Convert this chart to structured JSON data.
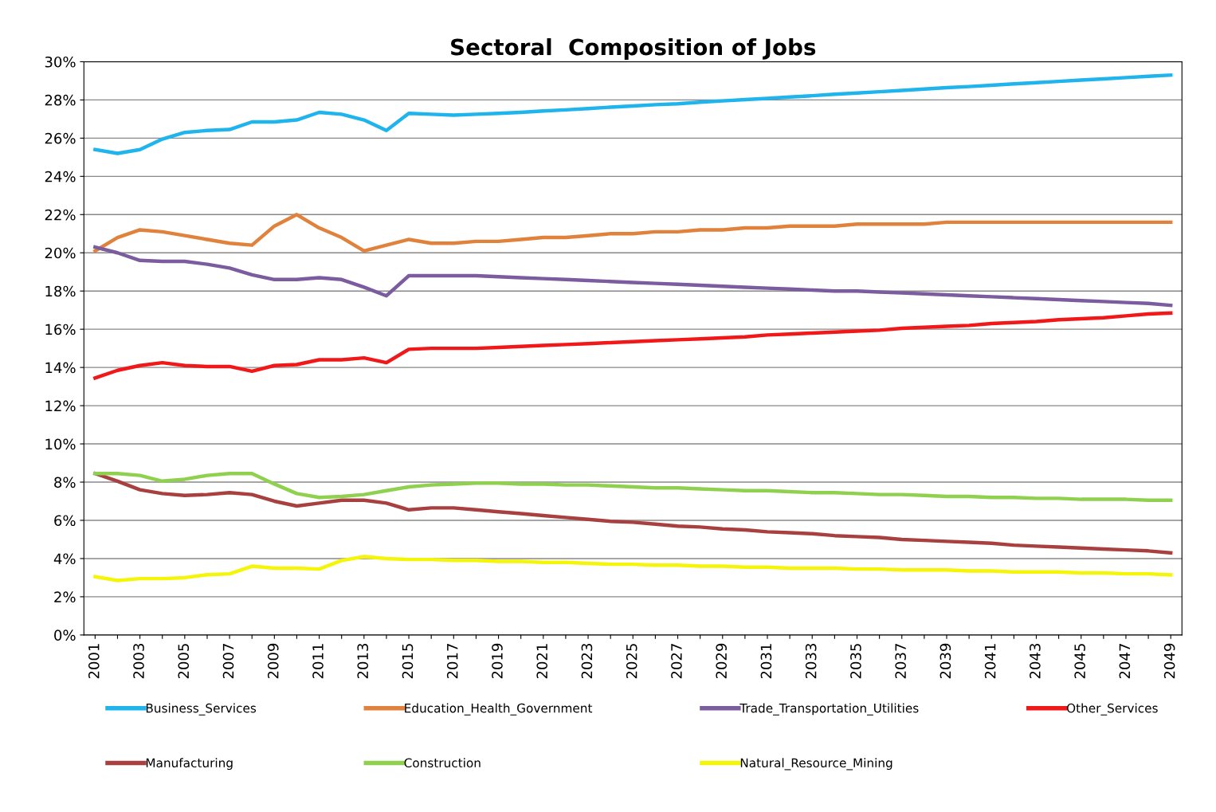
{
  "chart_data": {
    "type": "line",
    "title": "Sectoral  Composition of Jobs",
    "categories": [
      "2001",
      null,
      "2003",
      null,
      "2005",
      null,
      "2007",
      null,
      "2009",
      null,
      "2011",
      null,
      "2013",
      null,
      "2015",
      null,
      "2017",
      null,
      "2019",
      null,
      "2021",
      null,
      "2023",
      null,
      "2025",
      null,
      "2027",
      null,
      "2029",
      null,
      "2031",
      null,
      "2033",
      null,
      "2035",
      null,
      "2037",
      null,
      "2039",
      null,
      "2041",
      null,
      "2043",
      null,
      "2045",
      null,
      "2047",
      null,
      "2049"
    ],
    "ylim": [
      0,
      30
    ],
    "yticks": [
      {
        "value": 0,
        "label": "0%"
      },
      {
        "value": 2,
        "label": "2%"
      },
      {
        "value": 4,
        "label": "4%"
      },
      {
        "value": 6,
        "label": "6%"
      },
      {
        "value": 8,
        "label": "8%"
      },
      {
        "value": 10,
        "label": "10%"
      },
      {
        "value": 12,
        "label": "12%"
      },
      {
        "value": 14,
        "label": "14%"
      },
      {
        "value": 16,
        "label": "16%"
      },
      {
        "value": 18,
        "label": "18%"
      },
      {
        "value": 20,
        "label": "20%"
      },
      {
        "value": 22,
        "label": "22%"
      },
      {
        "value": 24,
        "label": "24%"
      },
      {
        "value": 26,
        "label": "26%"
      },
      {
        "value": 28,
        "label": "28%"
      },
      {
        "value": 30,
        "label": "30%"
      }
    ],
    "grid": "y",
    "legend": "bottom",
    "marker": "none",
    "line_style": "solid",
    "series": [
      {
        "name": "Business_Services",
        "color": "#1fb4ec",
        "values": [
          25.4,
          25.2,
          25.4,
          25.95,
          26.3,
          26.4,
          26.45,
          26.85,
          26.85,
          26.95,
          27.35,
          27.25,
          26.95,
          26.4,
          27.3,
          27.25,
          27.2,
          27.25,
          27.3,
          27.35,
          27.42,
          27.48,
          27.55,
          27.62,
          27.68,
          27.75,
          27.8,
          27.88,
          27.95,
          28.02,
          28.08,
          28.15,
          28.22,
          28.3,
          28.36,
          28.43,
          28.5,
          28.57,
          28.64,
          28.7,
          28.77,
          28.84,
          28.9,
          28.97,
          29.04,
          29.1,
          29.17,
          29.24,
          29.3
        ]
      },
      {
        "name": "Education_Health_Government",
        "color": "#e0823c",
        "values": [
          20.1,
          20.8,
          21.2,
          21.1,
          20.9,
          20.7,
          20.5,
          20.4,
          21.4,
          22.0,
          21.3,
          20.8,
          20.1,
          20.4,
          20.7,
          20.5,
          20.5,
          20.6,
          20.6,
          20.7,
          20.8,
          20.8,
          20.9,
          21.0,
          21.0,
          21.1,
          21.1,
          21.2,
          21.2,
          21.3,
          21.3,
          21.4,
          21.4,
          21.4,
          21.5,
          21.5,
          21.5,
          21.5,
          21.6,
          21.6,
          21.6,
          21.6,
          21.6,
          21.6,
          21.6,
          21.6,
          21.6,
          21.6,
          21.6
        ]
      },
      {
        "name": "Trade_Transportation_Utilities",
        "color": "#7b5c9e",
        "values": [
          20.3,
          20.0,
          19.6,
          19.55,
          19.55,
          19.4,
          19.2,
          18.85,
          18.6,
          18.6,
          18.7,
          18.6,
          18.2,
          17.75,
          18.8,
          18.8,
          18.8,
          18.8,
          18.75,
          18.7,
          18.65,
          18.6,
          18.55,
          18.5,
          18.45,
          18.4,
          18.35,
          18.3,
          18.25,
          18.2,
          18.15,
          18.1,
          18.05,
          18.0,
          18.0,
          17.95,
          17.9,
          17.85,
          17.8,
          17.75,
          17.7,
          17.65,
          17.6,
          17.55,
          17.5,
          17.45,
          17.4,
          17.35,
          17.25
        ]
      },
      {
        "name": "Other_Services",
        "color": "#f01818",
        "values": [
          13.45,
          13.85,
          14.1,
          14.25,
          14.1,
          14.05,
          14.05,
          13.8,
          14.1,
          14.15,
          14.4,
          14.4,
          14.5,
          14.25,
          14.95,
          15.0,
          15.0,
          15.0,
          15.05,
          15.1,
          15.15,
          15.2,
          15.25,
          15.3,
          15.35,
          15.4,
          15.45,
          15.5,
          15.55,
          15.6,
          15.7,
          15.75,
          15.8,
          15.85,
          15.9,
          15.95,
          16.05,
          16.1,
          16.15,
          16.2,
          16.3,
          16.35,
          16.4,
          16.5,
          16.55,
          16.6,
          16.7,
          16.8,
          16.85
        ]
      },
      {
        "name": "Manufacturing",
        "color": "#a84040",
        "values": [
          8.45,
          8.05,
          7.6,
          7.4,
          7.3,
          7.35,
          7.45,
          7.35,
          7.0,
          6.75,
          6.9,
          7.05,
          7.05,
          6.9,
          6.55,
          6.65,
          6.65,
          6.55,
          6.45,
          6.35,
          6.25,
          6.15,
          6.05,
          5.95,
          5.9,
          5.8,
          5.7,
          5.65,
          5.55,
          5.5,
          5.4,
          5.35,
          5.3,
          5.2,
          5.15,
          5.1,
          5.0,
          4.95,
          4.9,
          4.85,
          4.8,
          4.7,
          4.65,
          4.6,
          4.55,
          4.5,
          4.45,
          4.4,
          4.3
        ]
      },
      {
        "name": "Construction",
        "color": "#8fd14f",
        "values": [
          8.45,
          8.45,
          8.35,
          8.05,
          8.15,
          8.35,
          8.45,
          8.45,
          7.9,
          7.4,
          7.2,
          7.25,
          7.35,
          7.55,
          7.75,
          7.85,
          7.9,
          7.95,
          7.95,
          7.9,
          7.9,
          7.85,
          7.85,
          7.8,
          7.75,
          7.7,
          7.7,
          7.65,
          7.6,
          7.55,
          7.55,
          7.5,
          7.45,
          7.45,
          7.4,
          7.35,
          7.35,
          7.3,
          7.25,
          7.25,
          7.2,
          7.2,
          7.15,
          7.15,
          7.1,
          7.1,
          7.1,
          7.05,
          7.05
        ]
      },
      {
        "name": "Natural_Resource_Mining",
        "color": "#f5f50a",
        "values": [
          3.05,
          2.85,
          2.95,
          2.95,
          3.0,
          3.15,
          3.2,
          3.6,
          3.5,
          3.5,
          3.45,
          3.9,
          4.1,
          4.0,
          3.95,
          3.95,
          3.9,
          3.9,
          3.85,
          3.85,
          3.8,
          3.8,
          3.75,
          3.7,
          3.7,
          3.65,
          3.65,
          3.6,
          3.6,
          3.55,
          3.55,
          3.5,
          3.5,
          3.5,
          3.45,
          3.45,
          3.4,
          3.4,
          3.4,
          3.35,
          3.35,
          3.3,
          3.3,
          3.3,
          3.25,
          3.25,
          3.2,
          3.2,
          3.15
        ]
      }
    ]
  }
}
